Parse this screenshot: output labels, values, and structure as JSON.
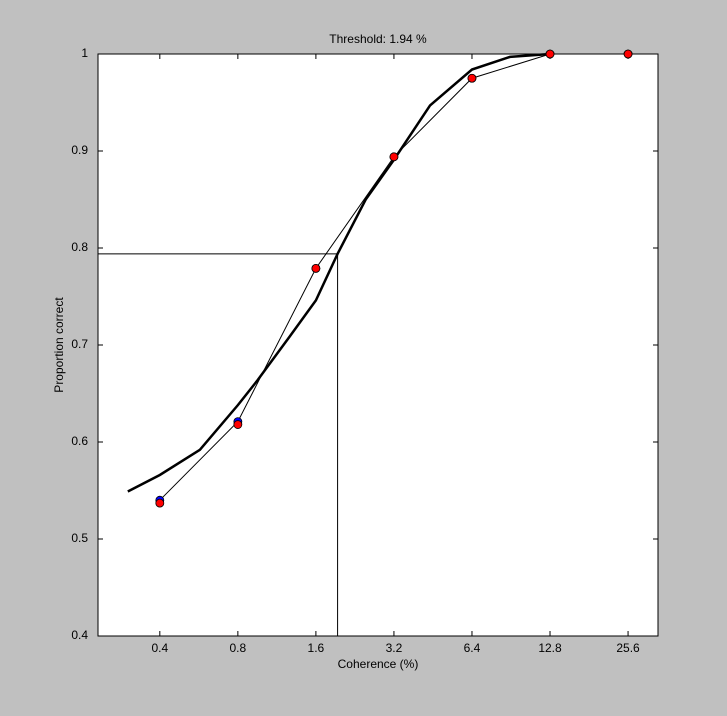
{
  "chart_data": {
    "type": "line",
    "title": "Threshold:  1.94 %",
    "x_label": "Coherence (%)",
    "y_label": "Proportion correct",
    "x": [
      0.4,
      0.8,
      1.6,
      3.2,
      6.4,
      12.8,
      25.6
    ],
    "series": [
      {
        "color": "#0000ff",
        "line_color": "#000000",
        "values": [
          0.54,
          0.621,
          0.779,
          0.894,
          0.975,
          1,
          1
        ]
      },
      {
        "color": "#ff0000",
        "values": [
          0.537,
          0.618,
          0.779,
          0.894,
          0.975,
          1,
          1
        ]
      }
    ],
    "fit": {
      "color": "#000000",
      "x": [
        0.301,
        0.4,
        0.571,
        0.8,
        0.955,
        1.27,
        1.6,
        1.94,
        2.49,
        3.2,
        4.41,
        6.4,
        8.97,
        12.8
      ],
      "values": [
        0.549,
        0.566,
        0.592,
        0.638,
        0.664,
        0.709,
        0.746,
        0.794,
        0.85,
        0.891,
        0.947,
        0.984,
        0.997,
        1
      ]
    },
    "threshold": 1.94,
    "threshold_level": 0.794,
    "xscale": "log",
    "xlim": [
      0.231,
      33.4
    ],
    "xticks": [
      0.4,
      0.8,
      1.6,
      3.2,
      6.4,
      12.8,
      25.6
    ],
    "ylim": [
      0.4,
      1
    ],
    "yticks": [
      0.4,
      0.5,
      0.6,
      0.7,
      0.8,
      0.9,
      1
    ]
  }
}
